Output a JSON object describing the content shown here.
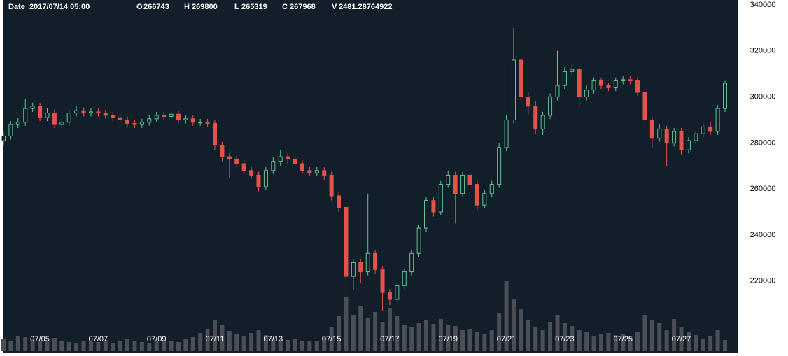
{
  "chart_data": {
    "type": "candlestick",
    "readout": [
      {
        "label": "Date",
        "value": "2017/07/14 05:00"
      },
      {
        "label": "O",
        "value": 266743
      },
      {
        "label": "H",
        "value": 269800
      },
      {
        "label": "L",
        "value": 265319
      },
      {
        "label": "C",
        "value": 267968
      },
      {
        "label": "V",
        "value": 2481.28764922
      }
    ],
    "up_color": "#5fc595",
    "down_color": "#e4534b",
    "volume_color": "#4b4f55",
    "background": "#131e2b",
    "ylim": [
      188000,
      340000
    ],
    "yticks": [
      340000,
      320000,
      300000,
      280000,
      260000,
      240000,
      220000
    ],
    "xlim": [
      -0.5,
      100.5
    ],
    "xticks": [
      {
        "value": 5,
        "label": "07/05"
      },
      {
        "value": 13,
        "label": "07/07"
      },
      {
        "value": 21,
        "label": "07/09"
      },
      {
        "value": 29,
        "label": "07/11"
      },
      {
        "value": 37,
        "label": "07/13"
      },
      {
        "value": 45,
        "label": "07/15"
      },
      {
        "value": 53,
        "label": "07/17"
      },
      {
        "value": 61,
        "label": "07/19"
      },
      {
        "value": 69,
        "label": "07/21"
      },
      {
        "value": 77,
        "label": "07/23"
      },
      {
        "value": 85,
        "label": "07/25"
      },
      {
        "value": 93,
        "label": "07/27"
      }
    ],
    "volume_lim": [
      0,
      10000
    ],
    "open": [
      281000,
      283000,
      288000,
      289000,
      295000,
      296000,
      291000,
      293000,
      288000,
      289000,
      293000,
      294000,
      293000,
      293500,
      293000,
      292000,
      291000,
      290000,
      288500,
      288000,
      289000,
      290500,
      292000,
      291500,
      292500,
      290000,
      290500,
      289000,
      289000,
      288500,
      279000,
      274000,
      273000,
      271000,
      268000,
      266000,
      261000,
      268000,
      272000,
      274000,
      273000,
      271000,
      268000,
      267000,
      268000,
      266000,
      257000,
      252000,
      222000,
      228000,
      224000,
      232000,
      225000,
      215000,
      212000,
      218000,
      224000,
      232000,
      243000,
      255000,
      250000,
      262000,
      266000,
      258000,
      266000,
      262000,
      253000,
      258000,
      262000,
      278000,
      290000,
      316000,
      300000,
      296000,
      286000,
      292000,
      300000,
      305000,
      311000,
      312000,
      300000,
      303000,
      307000,
      305000,
      304000,
      307000,
      307500,
      307000,
      302000,
      290000,
      282000,
      286000,
      280000,
      285000,
      277000,
      281000,
      284000,
      287000,
      285000,
      295000
    ],
    "high": [
      284500,
      289500,
      291000,
      299000,
      297500,
      297500,
      295000,
      294500,
      290500,
      294500,
      296000,
      295500,
      295000,
      295000,
      294500,
      293500,
      292500,
      291500,
      290000,
      290500,
      292000,
      293500,
      293500,
      294000,
      294000,
      292000,
      292000,
      290500,
      290500,
      290000,
      280500,
      275500,
      274500,
      272500,
      269500,
      267500,
      269500,
      274000,
      277000,
      275500,
      274500,
      272500,
      269500,
      269500,
      269500,
      267500,
      258500,
      253500,
      229500,
      229500,
      258000,
      233500,
      226500,
      216500,
      219500,
      225500,
      233500,
      244500,
      256500,
      256500,
      263500,
      268000,
      267500,
      267500,
      267500,
      263500,
      259500,
      263500,
      280000,
      292000,
      330000,
      316500,
      302000,
      298000,
      293500,
      301500,
      320000,
      313000,
      314000,
      313500,
      305000,
      308500,
      308500,
      306000,
      308500,
      309000,
      309000,
      308500,
      303500,
      291500,
      288000,
      287500,
      286500,
      286500,
      282500,
      285500,
      288500,
      289000,
      296500,
      307000
    ],
    "low": [
      279000,
      281500,
      286500,
      287500,
      293500,
      289500,
      289500,
      286500,
      286500,
      287500,
      291500,
      291500,
      291500,
      291500,
      290500,
      289500,
      288500,
      287000,
      286500,
      286500,
      287500,
      289000,
      290000,
      290000,
      288500,
      288500,
      287500,
      287500,
      287000,
      277000,
      272000,
      265000,
      269000,
      266500,
      264500,
      259000,
      259500,
      266500,
      270000,
      271000,
      269500,
      266500,
      265500,
      265500,
      264000,
      255000,
      250000,
      211500,
      216000,
      219000,
      222500,
      223000,
      207000,
      209500,
      210500,
      216500,
      222500,
      230500,
      241500,
      248000,
      248500,
      260500,
      245000,
      256500,
      260500,
      251000,
      251500,
      256500,
      260500,
      276500,
      288500,
      298500,
      292000,
      284000,
      283500,
      290500,
      298500,
      303500,
      309500,
      296000,
      298500,
      301500,
      303500,
      302500,
      302500,
      305500,
      305500,
      300500,
      288500,
      278000,
      280500,
      270000,
      278500,
      275000,
      275500,
      279500,
      282500,
      283500,
      283500,
      293500
    ],
    "close": [
      283000,
      288000,
      289000,
      295000,
      296000,
      291000,
      293000,
      288000,
      289000,
      293000,
      294000,
      293000,
      293500,
      293000,
      292000,
      291000,
      290000,
      288500,
      288000,
      289000,
      290500,
      292000,
      291500,
      292500,
      290000,
      290500,
      289000,
      289000,
      288500,
      279000,
      274000,
      273000,
      271000,
      268000,
      266000,
      261000,
      268000,
      272000,
      274000,
      273000,
      271000,
      268000,
      267000,
      268000,
      266000,
      257000,
      252000,
      222000,
      228000,
      224000,
      232000,
      225000,
      215000,
      212000,
      218000,
      224000,
      232000,
      243000,
      255000,
      250000,
      262000,
      266000,
      258000,
      266000,
      262000,
      253000,
      258000,
      262000,
      278000,
      290000,
      316000,
      300000,
      296000,
      286000,
      292000,
      300000,
      305000,
      311000,
      312000,
      300000,
      303000,
      307000,
      305000,
      304000,
      307000,
      307500,
      307000,
      302000,
      290000,
      282000,
      286000,
      280000,
      285000,
      277000,
      281000,
      284000,
      287000,
      285000,
      295000,
      306000
    ],
    "volume": [
      1800,
      1500,
      2200,
      2000,
      1700,
      1400,
      1600,
      1900,
      1500,
      1300,
      1200,
      1500,
      1400,
      1300,
      1600,
      1200,
      1400,
      1700,
      1500,
      1300,
      1200,
      1400,
      1600,
      1500,
      1300,
      1700,
      2000,
      2600,
      3200,
      4500,
      3800,
      2900,
      2400,
      2200,
      2600,
      3000,
      2300,
      1900,
      1700,
      1600,
      1800,
      1500,
      1400,
      1500,
      2000,
      3500,
      5000,
      7800,
      5200,
      6500,
      4800,
      5600,
      4200,
      6200,
      5000,
      3800,
      3500,
      4000,
      4400,
      3900,
      4600,
      3800,
      3600,
      3000,
      3200,
      2800,
      2500,
      3000,
      5400,
      10000,
      7500,
      6000,
      4500,
      3400,
      3000,
      4200,
      5200,
      4000,
      3600,
      3000,
      2800,
      2200,
      2400,
      2600,
      2300,
      2500,
      2000,
      2800,
      5200,
      4400,
      4000,
      3000,
      4600,
      3500,
      2800,
      2300,
      1800,
      2200,
      3000,
      1600
    ]
  }
}
